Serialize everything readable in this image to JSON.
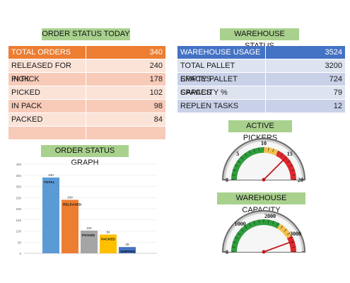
{
  "order_status": {
    "title": "ORDER STATUS TODAY",
    "header": {
      "label": "TOTAL ORDERS",
      "value": "340"
    },
    "rows": [
      {
        "label": "RELEASED FOR PICK",
        "value": "240"
      },
      {
        "label": "IN PICK",
        "value": "178"
      },
      {
        "label": "PICKED",
        "value": "102"
      },
      {
        "label": "IN PACK",
        "value": "98"
      },
      {
        "label": "PACKED",
        "value": "84"
      },
      {
        "label": "",
        "value": ""
      }
    ]
  },
  "warehouse_status": {
    "title": "WAREHOUSE STATUS",
    "header": {
      "label": "WAREHOUSE USAGE",
      "value": "3524"
    },
    "rows": [
      {
        "label": "TOTAL PALLET SPACES",
        "value": "3200"
      },
      {
        "label": "EMPTY PALLET SPACES",
        "value": "724"
      },
      {
        "label": "CAPACITY %",
        "value": "79"
      },
      {
        "label": "REPLEN TASKS",
        "value": "12"
      }
    ]
  },
  "active_pickers": {
    "title": "ACTIVE PICKERS",
    "ticks": [
      "0",
      "5",
      "10",
      "15",
      "20"
    ],
    "min": 0,
    "max": 20,
    "value": 15
  },
  "warehouse_capacity": {
    "title": "WAREHOUSE CAPACITY",
    "ticks": [
      "0",
      "1000",
      "2000",
      "3000"
    ],
    "min": 0,
    "max": 3600,
    "value": 3200
  },
  "colors": {
    "orange": "#ed7d31",
    "blue": "#4472c4",
    "green_band": "#a9d18e",
    "gauge_green": "#2e9e3e",
    "gauge_yellow": "#f2c14e",
    "gauge_red": "#e0282d"
  },
  "chart_data": {
    "type": "bar",
    "title": "ORDER STATUS GRAPH",
    "categories": [
      "TOTAL",
      "RELEASED",
      "PICKED",
      "PACKED",
      "SHIPPED"
    ],
    "values": [
      340,
      240,
      102,
      84,
      28
    ],
    "colors": [
      "#5b9bd5",
      "#ed7d31",
      "#a5a5a5",
      "#ffc000",
      "#4472c4"
    ],
    "ylim": [
      0,
      400
    ],
    "yticks": [
      "0",
      "50",
      "100",
      "150",
      "200",
      "250",
      "300",
      "350",
      "400"
    ],
    "grid": true
  }
}
